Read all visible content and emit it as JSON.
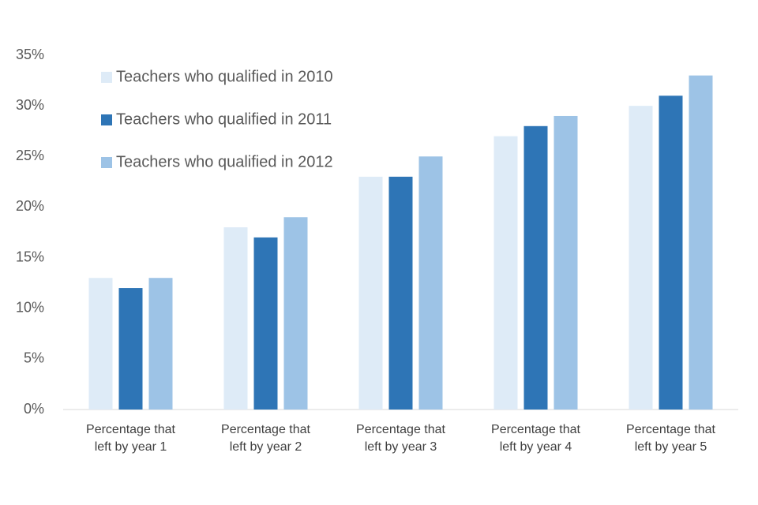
{
  "chart_data": {
    "type": "bar",
    "categories": [
      "Percentage that left by year 1",
      "Percentage that left by year 2",
      "Percentage that left by year 3",
      "Percentage that left by year 4",
      "Percentage that left by year 5"
    ],
    "series": [
      {
        "name": "Teachers who qualified in 2010",
        "color": "#deebf7",
        "values": [
          13,
          18,
          23,
          27,
          30
        ]
      },
      {
        "name": "Teachers who qualified in 2011",
        "color": "#2e75b6",
        "values": [
          12,
          17,
          23,
          28,
          31
        ]
      },
      {
        "name": "Teachers who qualified in 2012",
        "color": "#9dc3e6",
        "values": [
          13,
          19,
          25,
          29,
          33
        ]
      }
    ],
    "ylim": [
      0,
      35
    ],
    "yticks": [
      {
        "value": 0,
        "label": "0%"
      },
      {
        "value": 5,
        "label": "5%"
      },
      {
        "value": 10,
        "label": "10%"
      },
      {
        "value": 15,
        "label": "15%"
      },
      {
        "value": 20,
        "label": "20%"
      },
      {
        "value": 25,
        "label": "25%"
      },
      {
        "value": 30,
        "label": "30%"
      },
      {
        "value": 35,
        "label": "35%"
      }
    ],
    "grid": false,
    "legend": "upper left"
  }
}
